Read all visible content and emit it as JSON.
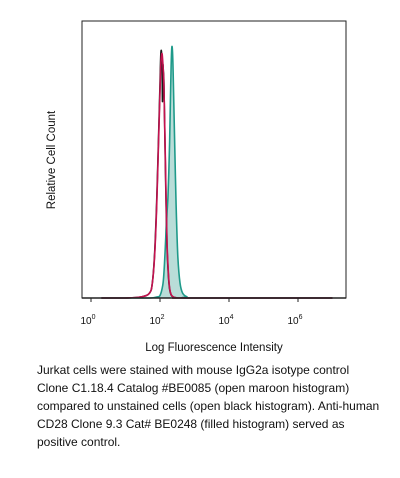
{
  "chart_data": {
    "type": "area",
    "title": "",
    "xlabel": "Log Fluorescence Intensity",
    "ylabel": "Relative Cell Count",
    "x_scale": "log",
    "xlim": [
      1,
      10000000
    ],
    "ylim": [
      0,
      1.1
    ],
    "grid": false,
    "legend": "none",
    "x_ticks": [
      {
        "base": "10",
        "exp": "0",
        "value": 1
      },
      {
        "base": "10",
        "exp": "2",
        "value": 100
      },
      {
        "base": "10",
        "exp": "4",
        "value": 10000
      },
      {
        "base": "10",
        "exp": "6",
        "value": 1000000
      }
    ],
    "series": [
      {
        "color": "#1a1a1a",
        "fill": false,
        "stroke_width": 1.6,
        "x": [
          2,
          10,
          30,
          50,
          60,
          70,
          80,
          90,
          100,
          105,
          110,
          115,
          118,
          121,
          125,
          130,
          140,
          150,
          160,
          175,
          190,
          210,
          240,
          300,
          600,
          10000000
        ],
        "y": [
          0,
          0,
          0.005,
          0.02,
          0.06,
          0.18,
          0.38,
          0.62,
          0.85,
          0.96,
          0.98,
          0.91,
          0.78,
          0.92,
          0.9,
          0.85,
          0.6,
          0.37,
          0.2,
          0.09,
          0.035,
          0.012,
          0.004,
          0.001,
          0,
          0
        ]
      },
      {
        "color": "#c4124f",
        "fill": false,
        "stroke_width": 1.6,
        "x": [
          2,
          10,
          30,
          50,
          60,
          70,
          80,
          90,
          100,
          105,
          110,
          115,
          120,
          125,
          130,
          140,
          150,
          160,
          175,
          190,
          210,
          240,
          300,
          600,
          10000000
        ],
        "y": [
          0,
          0,
          0.005,
          0.02,
          0.06,
          0.17,
          0.36,
          0.6,
          0.82,
          0.92,
          0.96,
          0.97,
          0.94,
          0.9,
          0.84,
          0.62,
          0.4,
          0.22,
          0.1,
          0.04,
          0.014,
          0.005,
          0.001,
          0,
          0
        ]
      },
      {
        "color": "#1f9a8a",
        "fill": true,
        "fill_color": "#b9ddd8",
        "stroke_width": 1.6,
        "x": [
          2,
          10,
          50,
          80,
          100,
          120,
          130,
          140,
          150,
          160,
          170,
          180,
          190,
          200,
          210,
          220,
          230,
          240,
          260,
          280,
          300,
          330,
          380,
          450,
          600,
          1000,
          10000000
        ],
        "y": [
          0,
          0,
          0,
          0.004,
          0.01,
          0.05,
          0.1,
          0.18,
          0.27,
          0.34,
          0.4,
          0.5,
          0.62,
          0.78,
          0.92,
          0.995,
          0.98,
          0.9,
          0.68,
          0.48,
          0.32,
          0.16,
          0.06,
          0.02,
          0.005,
          0,
          0
        ]
      }
    ]
  },
  "caption": "Jurkat cells were stained with mouse IgG2a isotype control Clone C1.18.4 Catalog #BE0085 (open maroon histogram) compared to unstained cells (open black histogram). Anti-human CD28 Clone 9.3 Cat# BE0248 (filled histogram) served as positive control."
}
